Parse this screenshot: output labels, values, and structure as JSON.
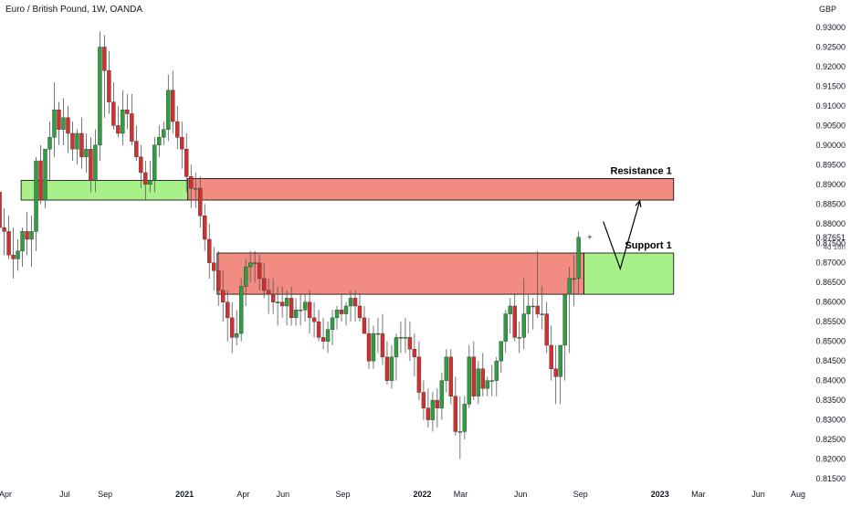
{
  "header": {
    "title": "Euro / British Pound, 1W, OANDA",
    "currency": "GBP"
  },
  "price_readout": {
    "last": "0.87651",
    "countdown": "4d 18h"
  },
  "colors": {
    "bull": "#2e9e3f",
    "bear": "#d32f2f",
    "wick": "#555555",
    "resistance_fill": "#f28b82",
    "support_fill": "#a8f08a",
    "zone_border": "#000000"
  },
  "chart_data": {
    "type": "candlestick",
    "title": "Euro / British Pound, 1W, OANDA",
    "ylabel": "GBP",
    "ylim": [
      0.8125,
      0.9325
    ],
    "xlim": [
      "2020-04-01",
      "2023-09-01"
    ],
    "y_ticks": [
      "0.93000",
      "0.92500",
      "0.92000",
      "0.91500",
      "0.91000",
      "0.90500",
      "0.90000",
      "0.89500",
      "0.89000",
      "0.88500",
      "0.88000",
      "0.87500",
      "0.87000",
      "0.86500",
      "0.86000",
      "0.85500",
      "0.85000",
      "0.84500",
      "0.84000",
      "0.83500",
      "0.83000",
      "0.82500",
      "0.82000",
      "0.81500"
    ],
    "x_ticks": [
      {
        "label": "Apr",
        "date": "2020-04-01",
        "bold": false
      },
      {
        "label": "Jul",
        "date": "2020-07-01",
        "bold": false
      },
      {
        "label": "Sep",
        "date": "2020-09-01",
        "bold": false
      },
      {
        "label": "2021",
        "date": "2021-01-01",
        "bold": true
      },
      {
        "label": "Apr",
        "date": "2021-04-01",
        "bold": false
      },
      {
        "label": "Jun",
        "date": "2021-06-01",
        "bold": false
      },
      {
        "label": "Sep",
        "date": "2021-09-01",
        "bold": false
      },
      {
        "label": "2022",
        "date": "2022-01-01",
        "bold": true
      },
      {
        "label": "Mar",
        "date": "2022-03-01",
        "bold": false
      },
      {
        "label": "Jun",
        "date": "2022-06-01",
        "bold": false
      },
      {
        "label": "Sep",
        "date": "2022-09-01",
        "bold": false
      },
      {
        "label": "2023",
        "date": "2023-01-01",
        "bold": true
      },
      {
        "label": "Mar",
        "date": "2023-03-01",
        "bold": false
      },
      {
        "label": "Jun",
        "date": "2023-06-01",
        "bold": false
      },
      {
        "label": "Aug",
        "date": "2023-08-01",
        "bold": false
      }
    ],
    "zones": [
      {
        "name": "Resistance 1",
        "kind": "resistance",
        "x_start": "2021-01-06",
        "x_end": "2023-01-22",
        "low": 0.886,
        "high": 0.8915
      },
      {
        "name": "Support 1",
        "kind": "support",
        "x_start": "2022-09-06",
        "x_end": "2023-01-22",
        "low": 0.862,
        "high": 0.8725
      },
      {
        "name": "",
        "kind": "resistance",
        "x_start": "2021-02-20",
        "x_end": "2022-09-06",
        "low": 0.862,
        "high": 0.8725
      },
      {
        "name": "",
        "kind": "support",
        "x_start": "2020-04-25",
        "x_end": "2021-01-06",
        "low": 0.886,
        "high": 0.891
      }
    ],
    "projection": [
      {
        "date": "2022-10-06",
        "price": 0.8805
      },
      {
        "date": "2022-11-01",
        "price": 0.8685
      },
      {
        "date": "2022-12-01",
        "price": 0.8858
      }
    ],
    "series": {
      "dates": [
        "2020-03-23",
        "2020-03-30",
        "2020-04-06",
        "2020-04-13",
        "2020-04-20",
        "2020-04-27",
        "2020-05-04",
        "2020-05-11",
        "2020-05-18",
        "2020-05-25",
        "2020-06-01",
        "2020-06-08",
        "2020-06-15",
        "2020-06-22",
        "2020-06-29",
        "2020-07-06",
        "2020-07-13",
        "2020-07-20",
        "2020-07-27",
        "2020-08-03",
        "2020-08-10",
        "2020-08-17",
        "2020-08-24",
        "2020-08-31",
        "2020-09-07",
        "2020-09-14",
        "2020-09-21",
        "2020-09-28",
        "2020-10-05",
        "2020-10-12",
        "2020-10-19",
        "2020-10-26",
        "2020-11-02",
        "2020-11-09",
        "2020-11-16",
        "2020-11-23",
        "2020-11-30",
        "2020-12-07",
        "2020-12-14",
        "2020-12-21",
        "2020-12-28",
        "2021-01-04",
        "2021-01-11",
        "2021-01-18",
        "2021-01-25",
        "2021-02-01",
        "2021-02-08",
        "2021-02-15",
        "2021-02-22",
        "2021-03-01",
        "2021-03-08",
        "2021-03-15",
        "2021-03-22",
        "2021-03-29",
        "2021-04-05",
        "2021-04-12",
        "2021-04-19",
        "2021-04-26",
        "2021-05-03",
        "2021-05-10",
        "2021-05-17",
        "2021-05-24",
        "2021-05-31",
        "2021-06-07",
        "2021-06-14",
        "2021-06-21",
        "2021-06-28",
        "2021-07-05",
        "2021-07-12",
        "2021-07-19",
        "2021-07-26",
        "2021-08-02",
        "2021-08-09",
        "2021-08-16",
        "2021-08-23",
        "2021-08-30",
        "2021-09-06",
        "2021-09-13",
        "2021-09-20",
        "2021-09-27",
        "2021-10-04",
        "2021-10-11",
        "2021-10-18",
        "2021-10-25",
        "2021-11-01",
        "2021-11-08",
        "2021-11-15",
        "2021-11-22",
        "2021-11-29",
        "2021-12-06",
        "2021-12-13",
        "2021-12-20",
        "2021-12-27",
        "2022-01-03",
        "2022-01-10",
        "2022-01-17",
        "2022-01-24",
        "2022-01-31",
        "2022-02-07",
        "2022-02-14",
        "2022-02-21",
        "2022-02-28",
        "2022-03-07",
        "2022-03-14",
        "2022-03-21",
        "2022-03-28",
        "2022-04-04",
        "2022-04-11",
        "2022-04-18",
        "2022-04-25",
        "2022-05-02",
        "2022-05-09",
        "2022-05-16",
        "2022-05-23",
        "2022-05-30",
        "2022-06-06",
        "2022-06-13",
        "2022-06-20",
        "2022-06-27",
        "2022-07-04",
        "2022-07-11",
        "2022-07-18",
        "2022-07-25",
        "2022-08-01",
        "2022-08-08",
        "2022-08-15",
        "2022-08-22",
        "2022-08-29"
      ],
      "open": [
        0.888,
        0.879,
        0.878,
        0.872,
        0.871,
        0.873,
        0.878,
        0.876,
        0.878,
        0.896,
        0.886,
        0.899,
        0.902,
        0.909,
        0.904,
        0.907,
        0.903,
        0.899,
        0.903,
        0.897,
        0.899,
        0.891,
        0.9,
        0.925,
        0.919,
        0.911,
        0.905,
        0.903,
        0.909,
        0.908,
        0.901,
        0.897,
        0.893,
        0.89,
        0.891,
        0.9,
        0.902,
        0.904,
        0.914,
        0.906,
        0.902,
        0.899,
        0.892,
        0.889,
        0.889,
        0.882,
        0.876,
        0.87,
        0.868,
        0.863,
        0.86,
        0.856,
        0.851,
        0.852,
        0.864,
        0.869,
        0.87,
        0.87,
        0.866,
        0.863,
        0.862,
        0.86,
        0.86,
        0.859,
        0.861,
        0.856,
        0.858,
        0.858,
        0.86,
        0.856,
        0.855,
        0.851,
        0.85,
        0.853,
        0.856,
        0.858,
        0.857,
        0.859,
        0.861,
        0.859,
        0.856,
        0.852,
        0.845,
        0.852,
        0.852,
        0.846,
        0.84,
        0.846,
        0.851,
        0.851,
        0.851,
        0.848,
        0.846,
        0.837,
        0.833,
        0.83,
        0.835,
        0.833,
        0.84,
        0.846,
        0.836,
        0.827,
        0.827,
        0.834,
        0.846,
        0.836,
        0.843,
        0.838,
        0.84,
        0.84,
        0.845,
        0.85,
        0.857,
        0.859,
        0.851,
        0.851,
        0.857,
        0.859,
        0.859,
        0.857,
        0.857,
        0.849,
        0.843,
        0.841,
        0.849,
        0.862,
        0.866,
        0.866
      ],
      "high": [
        0.891,
        0.884,
        0.882,
        0.879,
        0.876,
        0.879,
        0.883,
        0.882,
        0.897,
        0.9,
        0.898,
        0.906,
        0.916,
        0.911,
        0.912,
        0.91,
        0.906,
        0.904,
        0.907,
        0.903,
        0.902,
        0.904,
        0.929,
        0.928,
        0.924,
        0.916,
        0.91,
        0.914,
        0.913,
        0.913,
        0.905,
        0.9,
        0.896,
        0.896,
        0.902,
        0.905,
        0.906,
        0.918,
        0.919,
        0.91,
        0.906,
        0.903,
        0.895,
        0.893,
        0.892,
        0.885,
        0.88,
        0.874,
        0.873,
        0.868,
        0.863,
        0.86,
        0.858,
        0.866,
        0.871,
        0.873,
        0.873,
        0.872,
        0.87,
        0.866,
        0.866,
        0.864,
        0.864,
        0.863,
        0.864,
        0.861,
        0.862,
        0.862,
        0.863,
        0.86,
        0.858,
        0.856,
        0.855,
        0.858,
        0.859,
        0.862,
        0.86,
        0.863,
        0.863,
        0.862,
        0.859,
        0.856,
        0.854,
        0.856,
        0.857,
        0.85,
        0.849,
        0.852,
        0.855,
        0.856,
        0.855,
        0.852,
        0.85,
        0.84,
        0.838,
        0.837,
        0.838,
        0.842,
        0.848,
        0.848,
        0.841,
        0.836,
        0.836,
        0.849,
        0.85,
        0.845,
        0.847,
        0.841,
        0.844,
        0.846,
        0.85,
        0.858,
        0.861,
        0.862,
        0.855,
        0.866,
        0.862,
        0.861,
        0.873,
        0.864,
        0.86,
        0.854,
        0.849,
        0.849,
        0.862,
        0.869,
        0.872,
        0.878
      ],
      "low": [
        0.874,
        0.872,
        0.871,
        0.866,
        0.868,
        0.869,
        0.872,
        0.869,
        0.873,
        0.885,
        0.884,
        0.891,
        0.897,
        0.9,
        0.9,
        0.898,
        0.896,
        0.895,
        0.894,
        0.893,
        0.888,
        0.888,
        0.896,
        0.907,
        0.908,
        0.904,
        0.902,
        0.9,
        0.904,
        0.9,
        0.896,
        0.889,
        0.886,
        0.888,
        0.888,
        0.897,
        0.9,
        0.901,
        0.903,
        0.899,
        0.894,
        0.888,
        0.884,
        0.884,
        0.879,
        0.873,
        0.866,
        0.863,
        0.859,
        0.855,
        0.85,
        0.847,
        0.849,
        0.85,
        0.859,
        0.865,
        0.865,
        0.863,
        0.861,
        0.857,
        0.857,
        0.854,
        0.856,
        0.854,
        0.854,
        0.854,
        0.854,
        0.855,
        0.852,
        0.851,
        0.85,
        0.848,
        0.847,
        0.849,
        0.853,
        0.855,
        0.854,
        0.855,
        0.855,
        0.855,
        0.853,
        0.843,
        0.843,
        0.847,
        0.844,
        0.839,
        0.838,
        0.84,
        0.847,
        0.847,
        0.845,
        0.841,
        0.835,
        0.83,
        0.828,
        0.827,
        0.828,
        0.83,
        0.837,
        0.834,
        0.826,
        0.82,
        0.825,
        0.833,
        0.835,
        0.834,
        0.836,
        0.836,
        0.836,
        0.836,
        0.842,
        0.847,
        0.852,
        0.85,
        0.847,
        0.848,
        0.852,
        0.853,
        0.856,
        0.853,
        0.847,
        0.84,
        0.834,
        0.834,
        0.84,
        0.847,
        0.859,
        0.862
      ],
      "close": [
        0.879,
        0.878,
        0.872,
        0.871,
        0.873,
        0.878,
        0.876,
        0.878,
        0.896,
        0.886,
        0.899,
        0.902,
        0.909,
        0.904,
        0.907,
        0.903,
        0.899,
        0.903,
        0.897,
        0.899,
        0.891,
        0.9,
        0.925,
        0.919,
        0.911,
        0.905,
        0.903,
        0.909,
        0.908,
        0.901,
        0.897,
        0.893,
        0.89,
        0.891,
        0.9,
        0.902,
        0.904,
        0.914,
        0.906,
        0.902,
        0.899,
        0.892,
        0.889,
        0.889,
        0.882,
        0.876,
        0.87,
        0.868,
        0.863,
        0.86,
        0.856,
        0.851,
        0.852,
        0.864,
        0.869,
        0.87,
        0.87,
        0.866,
        0.863,
        0.862,
        0.86,
        0.86,
        0.859,
        0.861,
        0.856,
        0.858,
        0.858,
        0.86,
        0.856,
        0.855,
        0.851,
        0.85,
        0.853,
        0.856,
        0.858,
        0.857,
        0.859,
        0.861,
        0.859,
        0.856,
        0.852,
        0.845,
        0.852,
        0.852,
        0.846,
        0.84,
        0.846,
        0.851,
        0.851,
        0.851,
        0.848,
        0.846,
        0.837,
        0.833,
        0.83,
        0.835,
        0.833,
        0.84,
        0.846,
        0.836,
        0.827,
        0.827,
        0.834,
        0.846,
        0.836,
        0.843,
        0.838,
        0.84,
        0.84,
        0.845,
        0.85,
        0.857,
        0.859,
        0.851,
        0.851,
        0.857,
        0.859,
        0.859,
        0.857,
        0.857,
        0.849,
        0.843,
        0.841,
        0.849,
        0.862,
        0.866,
        0.866,
        0.8765
      ]
    }
  }
}
